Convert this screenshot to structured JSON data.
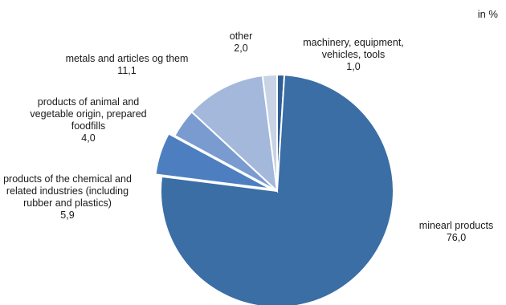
{
  "unit_label": "in %",
  "chart_data": {
    "type": "pie",
    "title": "",
    "start_angle_deg": 0,
    "direction": "clockwise",
    "exploded": [
      "products of the chemical and related industries (including rubber and plastics)"
    ],
    "slices": [
      {
        "label": "machinery, equipment, vehicles, tools",
        "label_lines": [
          "machinery, equipment,",
          "vehicles, tools"
        ],
        "value": 1.0,
        "value_text": "1,0",
        "color": "#2e5e94"
      },
      {
        "label": "minearl products",
        "label_lines": [
          "minearl products"
        ],
        "value": 76.0,
        "value_text": "76,0",
        "color": "#3a6ea5"
      },
      {
        "label": "products of the chemical and related industries (including rubber and plastics)",
        "label_lines": [
          "products of the chemical and",
          "related industries (including",
          "rubber and plastics)"
        ],
        "value": 5.9,
        "value_text": "5,9",
        "color": "#4d7fc0"
      },
      {
        "label": "products of animal and vegetable origin, prepared foodfills",
        "label_lines": [
          "products of animal and",
          "vegetable origin, prepared",
          "foodfills"
        ],
        "value": 4.0,
        "value_text": "4,0",
        "color": "#7a9bd0"
      },
      {
        "label": "metals and articles og them",
        "label_lines": [
          "metals and articles og them"
        ],
        "value": 11.1,
        "value_text": "11,1",
        "color": "#a3b8da"
      },
      {
        "label": "other",
        "label_lines": [
          "other"
        ],
        "value": 2.0,
        "value_text": "2,0",
        "color": "#c8d3e6"
      }
    ]
  }
}
